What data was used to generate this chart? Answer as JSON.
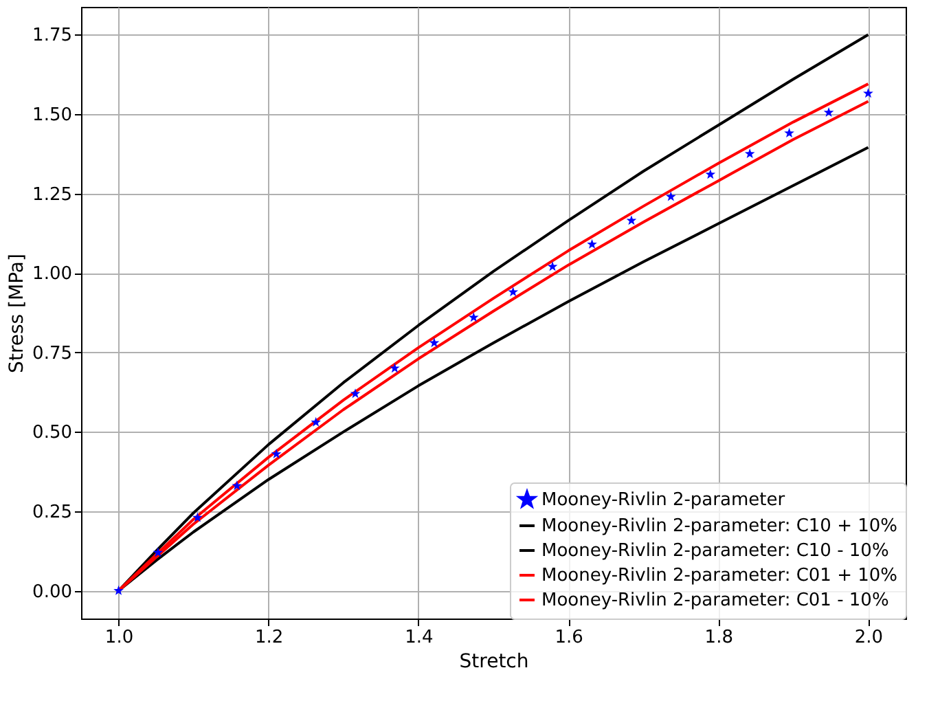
{
  "chart_data": {
    "type": "line",
    "xlabel": "Stretch",
    "ylabel": "Stress [MPa]",
    "xlim": [
      0.95,
      2.05
    ],
    "ylim": [
      -0.0875,
      1.8375
    ],
    "xticks": [
      {
        "value": 1,
        "label": "1.0"
      },
      {
        "value": 1.2,
        "label": "1.2"
      },
      {
        "value": 1.4,
        "label": "1.4"
      },
      {
        "value": 1.6,
        "label": "1.6"
      },
      {
        "value": 1.8,
        "label": "1.8"
      },
      {
        "value": 2,
        "label": "2.0"
      }
    ],
    "yticks": [
      {
        "value": 0,
        "label": "0.00"
      },
      {
        "value": 0.25,
        "label": "0.25"
      },
      {
        "value": 0.5,
        "label": "0.50"
      },
      {
        "value": 0.75,
        "label": "0.75"
      },
      {
        "value": 1,
        "label": "1.00"
      },
      {
        "value": 1.25,
        "label": "1.25"
      },
      {
        "value": 1.5,
        "label": "1.50"
      },
      {
        "value": 1.75,
        "label": "1.75"
      }
    ],
    "grid": true,
    "legend": "bottom right",
    "series": [
      {
        "name": "Mooney-Rivlin 2-parameter",
        "type": "scatter",
        "marker": "star",
        "color": "#0000ff",
        "x": [
          1.0,
          1.0526,
          1.1053,
          1.1579,
          1.2105,
          1.2632,
          1.3158,
          1.3684,
          1.4211,
          1.4737,
          1.5263,
          1.5789,
          1.6316,
          1.6842,
          1.7368,
          1.7895,
          1.8421,
          1.8947,
          1.9474,
          2.0
        ],
        "values": [
          0,
          0.12,
          0.23,
          0.33,
          0.43,
          0.53,
          0.62,
          0.7,
          0.78,
          0.86,
          0.94,
          1.02,
          1.09,
          1.165,
          1.24,
          1.31,
          1.375,
          1.44,
          1.505,
          1.565
        ]
      },
      {
        "name": "Mooney-Rivlin 2-parameter: C10 + 10%",
        "color": "#000000",
        "x": [
          1.0,
          1.05,
          1.1,
          1.2,
          1.3,
          1.4,
          1.5,
          1.6,
          1.7,
          1.8,
          1.9,
          2.0
        ],
        "values": [
          0,
          0.125,
          0.245,
          0.46,
          0.655,
          0.835,
          1.005,
          1.165,
          1.32,
          1.465,
          1.61,
          1.75
        ]
      },
      {
        "name": "Mooney-Rivlin 2-parameter: C10 - 10%",
        "color": "#000000",
        "x": [
          1.0,
          1.05,
          1.1,
          1.2,
          1.3,
          1.4,
          1.5,
          1.6,
          1.7,
          1.8,
          1.9,
          2.0
        ],
        "values": [
          0,
          0.095,
          0.185,
          0.35,
          0.5,
          0.645,
          0.78,
          0.91,
          1.035,
          1.155,
          1.275,
          1.395
        ]
      },
      {
        "name": "Mooney-Rivlin 2-parameter: C01 + 10%",
        "color": "#ff0000",
        "x": [
          1.0,
          1.05,
          1.1,
          1.2,
          1.3,
          1.4,
          1.5,
          1.6,
          1.7,
          1.8,
          1.9,
          2.0
        ],
        "values": [
          0,
          0.113,
          0.225,
          0.42,
          0.6,
          0.765,
          0.92,
          1.07,
          1.21,
          1.345,
          1.475,
          1.595
        ]
      },
      {
        "name": "Mooney-Rivlin 2-parameter: C01 - 10%",
        "color": "#ff0000",
        "x": [
          1.0,
          1.05,
          1.1,
          1.2,
          1.3,
          1.4,
          1.5,
          1.6,
          1.7,
          1.8,
          1.9,
          2.0
        ],
        "values": [
          0,
          0.105,
          0.21,
          0.395,
          0.57,
          0.73,
          0.88,
          1.025,
          1.16,
          1.29,
          1.42,
          1.54
        ]
      }
    ]
  }
}
